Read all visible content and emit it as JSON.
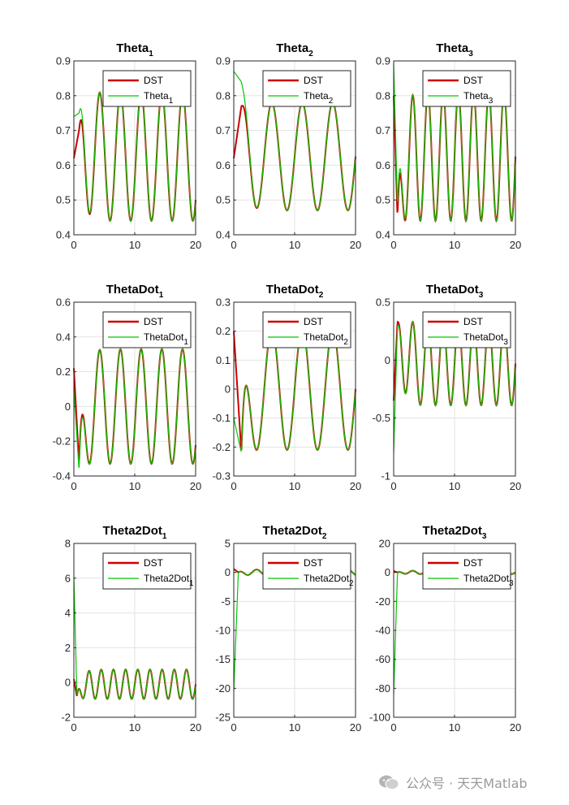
{
  "chart_data": [
    {
      "type": "line",
      "row": 0,
      "col": 0,
      "title": "Theta",
      "title_sub": "1",
      "xlim": [
        0,
        20
      ],
      "ylim": [
        0.4,
        0.9
      ],
      "xticks": [
        "0",
        "10",
        "20"
      ],
      "yticks": [
        "0.4",
        "0.5",
        "0.6",
        "0.7",
        "0.8",
        "0.9"
      ],
      "grid": true,
      "legend_position": "top-right",
      "series": [
        {
          "name": "DST",
          "color": "#cc0000",
          "start": [
            0.62,
            0.7
          ],
          "mean": 0.625,
          "amp": 0.185,
          "period": 3.4
        },
        {
          "name": "Theta",
          "name_sub": "1",
          "color": "#00c800",
          "start": [
            0.74,
            0.75
          ],
          "mean": 0.625,
          "amp": 0.185,
          "period": 3.4
        }
      ]
    },
    {
      "type": "line",
      "row": 0,
      "col": 1,
      "title": "Theta",
      "title_sub": "2",
      "xlim": [
        0,
        20
      ],
      "ylim": [
        0.4,
        0.9
      ],
      "xticks": [
        "0",
        "10",
        "20"
      ],
      "yticks": [
        "0.4",
        "0.5",
        "0.6",
        "0.7",
        "0.8",
        "0.9"
      ],
      "grid": true,
      "legend_position": "top-right",
      "series": [
        {
          "name": "DST",
          "color": "#cc0000",
          "start": [
            0.62,
            0.77
          ],
          "mean": 0.625,
          "amp": 0.155,
          "period": 5.0
        },
        {
          "name": "Theta",
          "name_sub": "2",
          "color": "#00c800",
          "start": [
            0.87,
            0.84
          ],
          "mean": 0.625,
          "amp": 0.155,
          "period": 5.0
        }
      ]
    },
    {
      "type": "line",
      "row": 0,
      "col": 2,
      "title": "Theta",
      "title_sub": "3",
      "xlim": [
        0,
        20
      ],
      "ylim": [
        0.4,
        0.9
      ],
      "xticks": [
        "0",
        "10",
        "20"
      ],
      "yticks": [
        "0.4",
        "0.5",
        "0.6",
        "0.7",
        "0.8",
        "0.9"
      ],
      "grid": true,
      "legend_position": "top-right",
      "series": [
        {
          "name": "DST",
          "color": "#cc0000",
          "start": [
            0.8,
            0.45
          ],
          "mean": 0.625,
          "amp": 0.185,
          "period": 2.5
        },
        {
          "name": "Theta",
          "name_sub": "3",
          "color": "#00c800",
          "start": [
            0.89,
            0.48
          ],
          "mean": 0.625,
          "amp": 0.185,
          "period": 2.5
        }
      ]
    },
    {
      "type": "line",
      "row": 1,
      "col": 0,
      "title": "ThetaDot",
      "title_sub": "1",
      "xlim": [
        0,
        20
      ],
      "ylim": [
        -0.4,
        0.6
      ],
      "xticks": [
        "0",
        "10",
        "20"
      ],
      "yticks": [
        "-0.4",
        "-0.2",
        "0",
        "0.2",
        "0.4",
        "0.6"
      ],
      "grid": true,
      "legend_position": "top-right",
      "series": [
        {
          "name": "DST",
          "color": "#cc0000",
          "start": [
            0.22,
            -0.33
          ],
          "mean": 0.0,
          "amp": 0.33,
          "period": 3.4
        },
        {
          "name": "ThetaDot",
          "name_sub": "1",
          "color": "#00c800",
          "start": [
            0.1,
            -0.37
          ],
          "mean": 0.0,
          "amp": 0.33,
          "period": 3.4
        }
      ]
    },
    {
      "type": "line",
      "row": 1,
      "col": 1,
      "title": "ThetaDot",
      "title_sub": "2",
      "xlim": [
        0,
        20
      ],
      "ylim": [
        -0.3,
        0.3
      ],
      "xticks": [
        "0",
        "10",
        "20"
      ],
      "yticks": [
        "-0.3",
        "-0.2",
        "-0.1",
        "0",
        "0.1",
        "0.2",
        "0.3"
      ],
      "grid": true,
      "legend_position": "top-right",
      "series": [
        {
          "name": "DST",
          "color": "#cc0000",
          "start": [
            0.2,
            -0.22
          ],
          "mean": 0.0,
          "amp": 0.21,
          "period": 5.0
        },
        {
          "name": "ThetaDot",
          "name_sub": "2",
          "color": "#00c800",
          "start": [
            -0.1,
            -0.22
          ],
          "mean": 0.0,
          "amp": 0.21,
          "period": 5.0
        }
      ]
    },
    {
      "type": "line",
      "row": 1,
      "col": 2,
      "title": "ThetaDot",
      "title_sub": "3",
      "xlim": [
        0,
        20
      ],
      "ylim": [
        -1,
        0.5
      ],
      "xticks": [
        "0",
        "10",
        "20"
      ],
      "yticks": [
        "-1",
        "-0.5",
        "0",
        "0.5"
      ],
      "grid": true,
      "legend_position": "top-right",
      "series": [
        {
          "name": "DST",
          "color": "#cc0000",
          "start": [
            -0.35,
            0.33
          ],
          "mean": -0.03,
          "amp": 0.36,
          "period": 2.5
        },
        {
          "name": "ThetaDot",
          "name_sub": "3",
          "color": "#00c800",
          "start": [
            -0.8,
            0.3
          ],
          "mean": -0.03,
          "amp": 0.36,
          "period": 2.5
        }
      ]
    },
    {
      "type": "line",
      "row": 2,
      "col": 0,
      "title": "Theta2Dot",
      "title_sub": "1",
      "xlim": [
        0,
        20
      ],
      "ylim": [
        -2,
        8
      ],
      "xticks": [
        "0",
        "10",
        "20"
      ],
      "yticks": [
        "-2",
        "0",
        "2",
        "4",
        "6",
        "8"
      ],
      "grid": true,
      "legend_position": "top-right",
      "series": [
        {
          "name": "DST",
          "color": "#cc0000",
          "start": [
            0.2,
            -0.8
          ],
          "mean": -0.1,
          "amp": 0.85,
          "period": 2.0
        },
        {
          "name": "Theta2Dot",
          "name_sub": "1",
          "color": "#00c800",
          "start": [
            6.1,
            -0.8
          ],
          "mean": -0.1,
          "amp": 0.85,
          "period": 2.0
        }
      ]
    },
    {
      "type": "line",
      "row": 2,
      "col": 1,
      "title": "Theta2Dot",
      "title_sub": "2",
      "xlim": [
        0,
        20
      ],
      "ylim": [
        -25,
        5
      ],
      "xticks": [
        "0",
        "10",
        "20"
      ],
      "yticks": [
        "-25",
        "-20",
        "-15",
        "-10",
        "-5",
        "0",
        "5"
      ],
      "grid": true,
      "legend_position": "top-right",
      "series": [
        {
          "name": "DST",
          "color": "#cc0000",
          "start": [
            0.6,
            0.0
          ],
          "mean": 0.0,
          "amp": 0.5,
          "period": 3.0
        },
        {
          "name": "Theta2Dot",
          "name_sub": "2",
          "color": "#00c800",
          "start": [
            -20.5,
            0.0
          ],
          "mean": 0.0,
          "amp": 0.5,
          "period": 3.0
        }
      ]
    },
    {
      "type": "line",
      "row": 2,
      "col": 2,
      "title": "Theta2Dot",
      "title_sub": "3",
      "xlim": [
        0,
        20
      ],
      "ylim": [
        -100,
        20
      ],
      "xticks": [
        "0",
        "10",
        "20"
      ],
      "yticks": [
        "-100",
        "-80",
        "-60",
        "-40",
        "-20",
        "0",
        "20"
      ],
      "grid": true,
      "legend_position": "top-right",
      "series": [
        {
          "name": "DST",
          "color": "#cc0000",
          "start": [
            1.0,
            0.0
          ],
          "mean": 0.0,
          "amp": 1.2,
          "period": 2.5
        },
        {
          "name": "Theta2Dot",
          "name_sub": "3",
          "color": "#00c800",
          "start": [
            -84,
            0.0
          ],
          "mean": 0.0,
          "amp": 1.2,
          "period": 2.5
        }
      ]
    }
  ],
  "watermark": {
    "text": "公众号 · 天天Matlab",
    "icon": "wechat-icon",
    "color": "#9a9a9a"
  }
}
